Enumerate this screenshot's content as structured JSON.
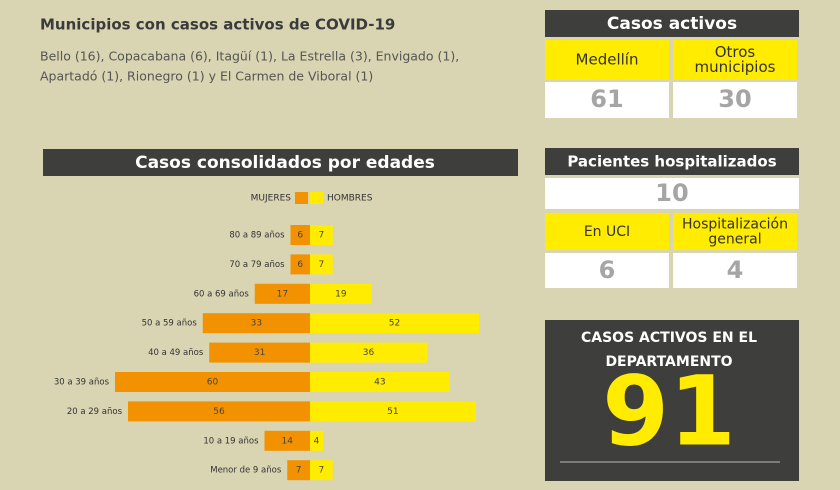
{
  "header": {
    "title": "Municipios con casos activos de COVID-19",
    "lines": [
      "Bello (16), Copacabana (6), Itagüí (1), La Estrella (3), Envigado (1),",
      "Apartadó (1), Rionegro (1) y El Carmen de Viboral (1)"
    ]
  },
  "active": {
    "title": "Casos activos",
    "columns": [
      {
        "label": [
          "Medellín"
        ],
        "value": 61
      },
      {
        "label": [
          "Otros",
          "municipios"
        ],
        "value": 30
      }
    ]
  },
  "hospital": {
    "title": "Pacientes hospitalizados",
    "total": 10,
    "columns": [
      {
        "label": [
          "En UCI"
        ],
        "value": 6
      },
      {
        "label": [
          "Hospitalización",
          "general"
        ],
        "value": 4
      }
    ]
  },
  "department": {
    "title": [
      "CASOS ACTIVOS EN EL",
      "DEPARTAMENTO"
    ],
    "value": 91
  },
  "chart_data": {
    "type": "pyramid",
    "title": "Casos consolidados por edades",
    "categories": [
      "80 a 89 años",
      "70 a 79 años",
      "60 a 69 años",
      "50 a 59 años",
      "40 a 49 años",
      "30 a 39 años",
      "20 a 29 años",
      "10 a 19 años",
      "Menor de 9 años"
    ],
    "series": [
      {
        "name": "MUJERES",
        "color": "#f39200",
        "values": [
          6,
          6,
          17,
          33,
          31,
          60,
          56,
          14,
          7
        ]
      },
      {
        "name": "HOMBRES",
        "color": "#ffec00",
        "values": [
          7,
          7,
          19,
          52,
          36,
          43,
          51,
          4,
          7
        ]
      }
    ]
  }
}
